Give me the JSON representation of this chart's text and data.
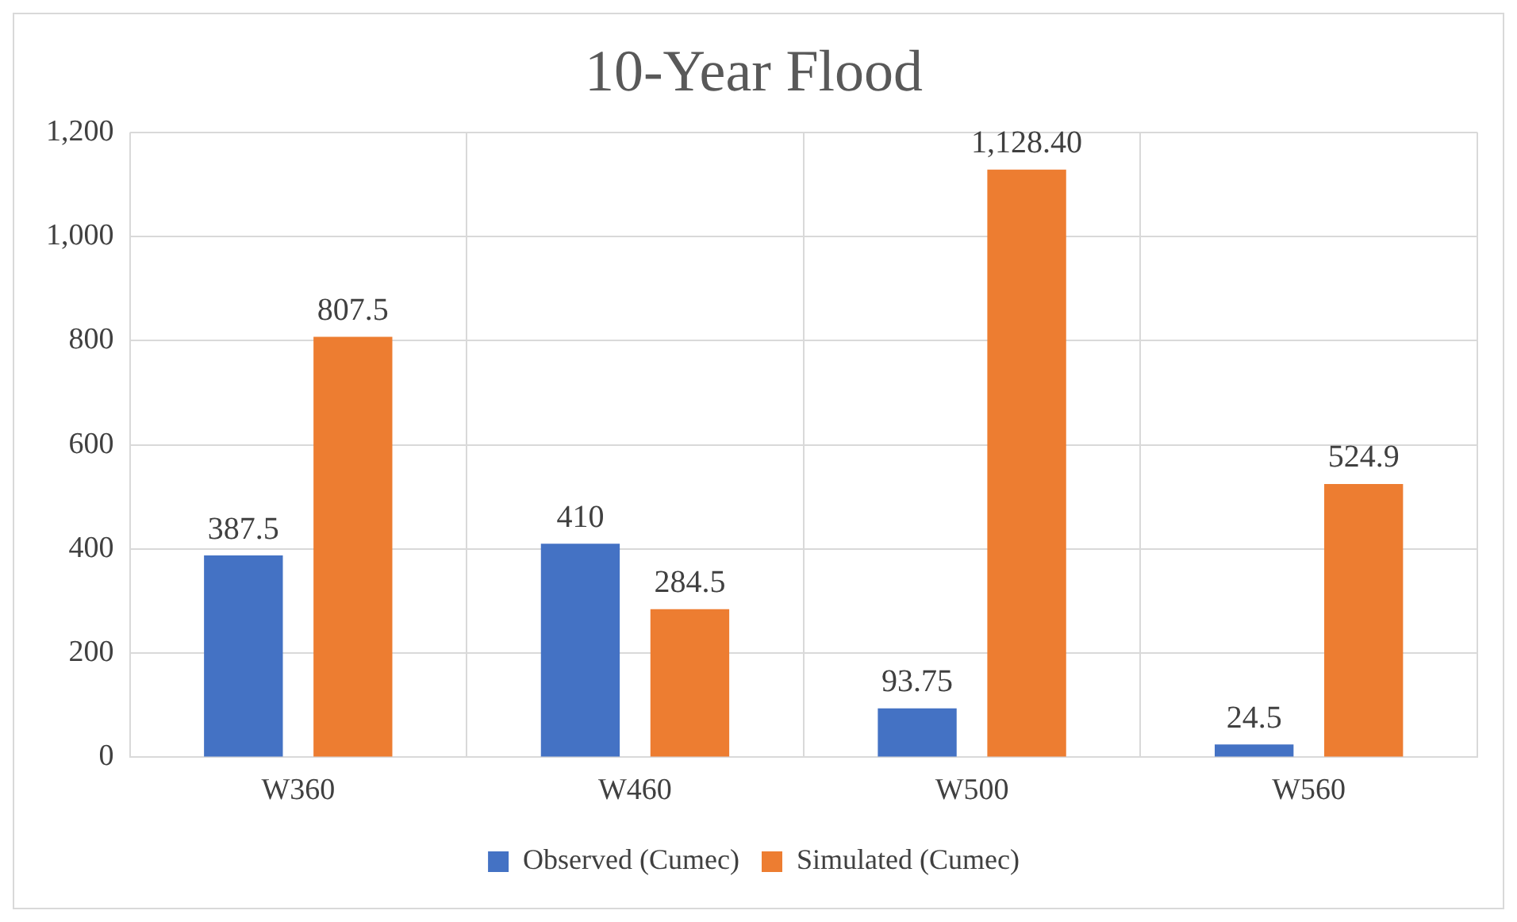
{
  "chart_data": {
    "type": "bar",
    "title": "10-Year Flood",
    "categories": [
      "W360",
      "W460",
      "W500",
      "W560"
    ],
    "series": [
      {
        "name": "Observed (Cumec)",
        "color": "#4472c4",
        "values": [
          387.5,
          410,
          93.75,
          24.5
        ],
        "value_labels": [
          "387.5",
          "410",
          "93.75",
          "24.5"
        ]
      },
      {
        "name": "Simulated (Cumec)",
        "color": "#ed7d31",
        "values": [
          807.5,
          284.5,
          1128.4,
          524.9
        ],
        "value_labels": [
          "807.5",
          "284.5",
          "1,128.40",
          "524.9"
        ]
      }
    ],
    "ylim": [
      0,
      1200
    ],
    "yticks": [
      0,
      200,
      400,
      600,
      800,
      {
        "value": 1000,
        "label": "1,000"
      },
      {
        "value": 1200,
        "label": "1,200"
      }
    ],
    "grid": true,
    "legend": "bottom"
  }
}
